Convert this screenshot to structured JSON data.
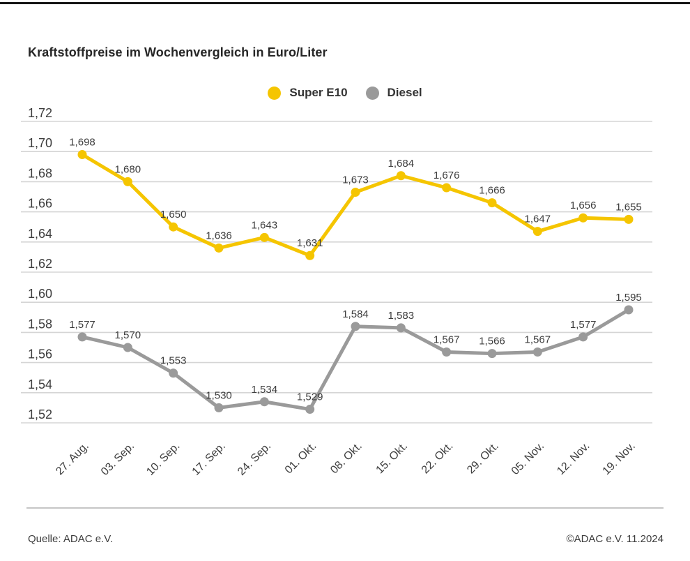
{
  "page": {
    "title": "Kraftstoffpreise im Wochenvergleich in Euro/Liter",
    "footer": {
      "source": "Quelle: ADAC e.V.",
      "copyright": "©ADAC e.V. 11.2024"
    }
  },
  "colors": {
    "super_e10": "#f5c500",
    "diesel": "#9a9a9a",
    "gridline": "#d5d5d5",
    "axis_text": "#3d3d3d",
    "data_label_text": "#3d3d3d"
  },
  "chart_data": {
    "type": "line",
    "title": "Kraftstoffpreise im Wochenvergleich in Euro/Liter",
    "unit": "Euro/Liter",
    "grid": true,
    "legend_position": "top-center",
    "categories": [
      "27. Aug.",
      "03. Sep.",
      "10. Sep.",
      "17. Sep.",
      "24. Sep.",
      "01. Okt.",
      "08. Okt.",
      "15. Okt.",
      "22. Okt.",
      "29. Okt.",
      "05. Nov.",
      "12. Nov.",
      "19. Nov."
    ],
    "series": [
      {
        "name": "Super E10",
        "color": "#f5c500",
        "values": [
          1.698,
          1.68,
          1.65,
          1.636,
          1.643,
          1.631,
          1.673,
          1.684,
          1.676,
          1.666,
          1.647,
          1.656,
          1.655
        ],
        "labels": [
          "1,698",
          "1,680",
          "1,650",
          "1,636",
          "1,643",
          "1,631",
          "1,673",
          "1,684",
          "1,676",
          "1,666",
          "1,647",
          "1,656",
          "1,655"
        ]
      },
      {
        "name": "Diesel",
        "color": "#9a9a9a",
        "values": [
          1.577,
          1.57,
          1.553,
          1.53,
          1.534,
          1.529,
          1.584,
          1.583,
          1.567,
          1.566,
          1.567,
          1.577,
          1.595
        ],
        "labels": [
          "1,577",
          "1,570",
          "1,553",
          "1,530",
          "1,534",
          "1,529",
          "1,584",
          "1,583",
          "1,567",
          "1,566",
          "1,567",
          "1,577",
          "1,595"
        ]
      }
    ],
    "y_axis": {
      "min": 1.52,
      "max": 1.72,
      "tick_step": 0.02,
      "tick_values": [
        1.72,
        1.7,
        1.68,
        1.66,
        1.64,
        1.62,
        1.6,
        1.58,
        1.56,
        1.54,
        1.52
      ],
      "tick_labels": [
        "1,72",
        "1,70",
        "1,68",
        "1,66",
        "1,64",
        "1,62",
        "1,60",
        "1,58",
        "1,56",
        "1,54",
        "1,52"
      ]
    }
  }
}
